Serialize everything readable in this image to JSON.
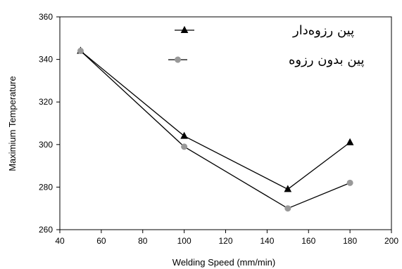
{
  "chart_data": {
    "type": "line",
    "title": "",
    "xlabel": "Welding Speed (mm/min)",
    "ylabel": "Maximium Temperature",
    "xlim": [
      40,
      200
    ],
    "ylim": [
      260,
      360
    ],
    "xticks": [
      40,
      60,
      80,
      100,
      120,
      140,
      160,
      180,
      200
    ],
    "yticks": [
      260,
      280,
      300,
      320,
      340,
      360
    ],
    "grid": false,
    "legend_position": "top-center",
    "series": [
      {
        "name": "پین رزوه‌دار",
        "marker": "triangle",
        "color": "#000000",
        "x": [
          50,
          100,
          150,
          180
        ],
        "y": [
          344,
          304,
          279,
          301
        ]
      },
      {
        "name": "پین بدون رزوه",
        "marker": "circle",
        "color": "#999999",
        "x": [
          50,
          100,
          150,
          180
        ],
        "y": [
          344,
          299,
          270,
          282
        ]
      }
    ]
  }
}
